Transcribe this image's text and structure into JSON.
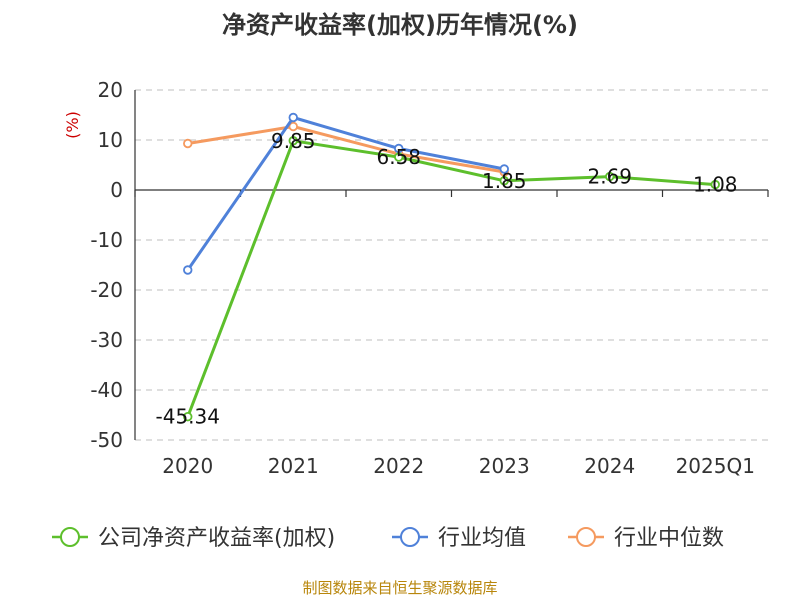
{
  "chart_data": {
    "type": "line",
    "title": "净资产收益率(加权)历年情况(%)",
    "ylabel": "(%)",
    "categories": [
      "2020",
      "2021",
      "2022",
      "2023",
      "2024",
      "2025Q1"
    ],
    "ylim": [
      -50,
      20
    ],
    "yticks": [
      20,
      10,
      0,
      -10,
      -20,
      -30,
      -40,
      -50
    ],
    "grid": true,
    "legend_position": "bottom",
    "series": [
      {
        "name": "公司净资产收益率(加权)",
        "color": "#5dbf2c",
        "values": [
          -45.34,
          9.85,
          6.58,
          1.85,
          2.69,
          1.08
        ],
        "labels": true
      },
      {
        "name": "行业均值",
        "color": "#4f81d9",
        "values": [
          -16.0,
          14.5,
          8.3,
          4.2,
          null,
          null
        ],
        "labels": false
      },
      {
        "name": "行业中位数",
        "color": "#f59a5f",
        "values": [
          9.3,
          12.7,
          7.2,
          3.6,
          null,
          null
        ],
        "labels": false
      }
    ],
    "source": "制图数据来自恒生聚源数据库"
  }
}
